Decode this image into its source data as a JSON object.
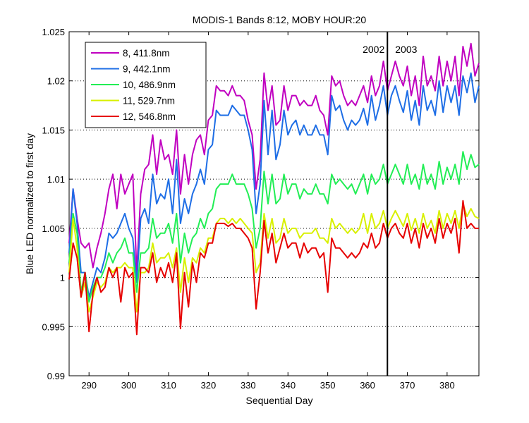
{
  "chart_data": {
    "type": "line",
    "title": "MODIS-1 Bands 8:12, MOBY HOUR:20",
    "xlabel": "Sequential Day",
    "ylabel": "Blue LED normalized to first day",
    "xlim": [
      285,
      388
    ],
    "ylim": [
      0.99,
      1.025
    ],
    "xticks": [
      290,
      300,
      310,
      320,
      330,
      340,
      350,
      360,
      370,
      380
    ],
    "yticks": [
      "0.99",
      "0.995",
      "1",
      "1.005",
      "1.01",
      "1.015",
      "1.02",
      "1.025"
    ],
    "grid": true,
    "legend_position": "top-left",
    "annotations": {
      "divider_x": 365,
      "left_label": "2002",
      "right_label": "2003"
    },
    "x": [
      285,
      286,
      287,
      288,
      289,
      290,
      291,
      292,
      293,
      294,
      295,
      296,
      297,
      298,
      299,
      300,
      301,
      302,
      303,
      304,
      305,
      306,
      307,
      308,
      309,
      310,
      311,
      312,
      313,
      314,
      315,
      316,
      317,
      318,
      319,
      320,
      321,
      322,
      323,
      324,
      325,
      326,
      327,
      328,
      329,
      330,
      331,
      332,
      333,
      334,
      335,
      336,
      337,
      338,
      339,
      340,
      341,
      342,
      343,
      344,
      345,
      346,
      347,
      348,
      349,
      350,
      351,
      352,
      353,
      354,
      355,
      356,
      357,
      358,
      359,
      360,
      361,
      362,
      363,
      364,
      365,
      366,
      367,
      368,
      369,
      370,
      371,
      372,
      373,
      374,
      375,
      376,
      377,
      378,
      379,
      380,
      381,
      382,
      383,
      384,
      385,
      386,
      387,
      388
    ],
    "series": [
      {
        "name": "8, 411.8nm",
        "color": "#c000c0",
        "values": [
          1.0035,
          1.009,
          1.006,
          1.0035,
          1.003,
          1.0035,
          1.001,
          1.003,
          1.0045,
          1.0065,
          1.009,
          1.0105,
          1.007,
          1.0105,
          1.0085,
          1.0095,
          1.0105,
          1.0005,
          1.0085,
          1.011,
          1.0115,
          1.0145,
          1.0105,
          1.014,
          1.012,
          1.0125,
          1.0105,
          1.015,
          1.0085,
          1.0125,
          1.0095,
          1.0125,
          1.014,
          1.0145,
          1.0125,
          1.016,
          1.0165,
          1.0195,
          1.019,
          1.019,
          1.0185,
          1.0195,
          1.0185,
          1.0185,
          1.018,
          1.016,
          1.0145,
          1.009,
          1.012,
          1.0208,
          1.017,
          1.0195,
          1.0155,
          1.016,
          1.0195,
          1.017,
          1.0185,
          1.0185,
          1.0175,
          1.018,
          1.0175,
          1.0175,
          1.0185,
          1.017,
          1.0165,
          1.0145,
          1.0205,
          1.0195,
          1.02,
          1.0185,
          1.0175,
          1.018,
          1.0175,
          1.0185,
          1.0195,
          1.0178,
          1.0205,
          1.0185,
          1.0195,
          1.022,
          1.019,
          1.0205,
          1.022,
          1.0205,
          1.0195,
          1.0215,
          1.0185,
          1.0205,
          1.0175,
          1.0225,
          1.0195,
          1.0205,
          1.019,
          1.0225,
          1.0195,
          1.022,
          1.02,
          1.0225,
          1.0185,
          1.0235,
          1.0215,
          1.0238,
          1.0205,
          1.0218
        ]
      },
      {
        "name": "9, 442.1nm",
        "color": "#1e6ee6",
        "values": [
          1.0025,
          1.009,
          1.0055,
          1.0005,
          1.0005,
          0.998,
          0.9995,
          1.001,
          1.0005,
          1.002,
          1.0045,
          1.004,
          1.0045,
          1.0055,
          1.0065,
          1.005,
          1.004,
          0.9995,
          1.006,
          1.007,
          1.0055,
          1.0105,
          1.0075,
          1.0085,
          1.008,
          1.01,
          1.0065,
          1.012,
          1.0055,
          1.008,
          1.0065,
          1.0085,
          1.0095,
          1.011,
          1.0095,
          1.013,
          1.0135,
          1.017,
          1.0165,
          1.0165,
          1.0165,
          1.0175,
          1.017,
          1.0165,
          1.0165,
          1.015,
          1.013,
          1.0065,
          1.0095,
          1.018,
          1.0125,
          1.017,
          1.012,
          1.0135,
          1.017,
          1.0145,
          1.0155,
          1.016,
          1.0145,
          1.0155,
          1.0145,
          1.0145,
          1.0155,
          1.0145,
          1.0145,
          1.0125,
          1.0185,
          1.017,
          1.0175,
          1.016,
          1.015,
          1.016,
          1.0155,
          1.016,
          1.0172,
          1.0155,
          1.0185,
          1.016,
          1.0175,
          1.0195,
          1.0165,
          1.0185,
          1.0195,
          1.018,
          1.0168,
          1.019,
          1.016,
          1.018,
          1.0155,
          1.0195,
          1.017,
          1.018,
          1.0165,
          1.02,
          1.0168,
          1.0195,
          1.0178,
          1.0195,
          1.0165,
          1.0205,
          1.0188,
          1.0208,
          1.0178,
          1.0195
        ]
      },
      {
        "name": "10, 486.9nm",
        "color": "#22ee55",
        "values": [
          1.0015,
          1.0065,
          1.0045,
          0.9985,
          1.0005,
          0.9975,
          0.999,
          1.0,
          1.0,
          1.001,
          1.0025,
          1.0015,
          1.0025,
          1.003,
          1.004,
          1.0025,
          1.0025,
          0.9985,
          1.0025,
          1.0025,
          1.003,
          1.006,
          1.004,
          1.0045,
          1.0045,
          1.0055,
          1.0035,
          1.0065,
          1.0015,
          1.0045,
          1.0025,
          1.004,
          1.0045,
          1.006,
          1.005,
          1.0065,
          1.007,
          1.009,
          1.0095,
          1.0095,
          1.0095,
          1.0105,
          1.0095,
          1.0095,
          1.0095,
          1.0085,
          1.007,
          1.003,
          1.005,
          1.0108,
          1.0075,
          1.0105,
          1.0075,
          1.008,
          1.0105,
          1.0085,
          1.0095,
          1.0095,
          1.008,
          1.009,
          1.0085,
          1.0085,
          1.0095,
          1.0085,
          1.0085,
          1.0075,
          1.0105,
          1.0095,
          1.01,
          1.0095,
          1.009,
          1.0095,
          1.0085,
          1.0095,
          1.0105,
          1.0085,
          1.0105,
          1.0095,
          1.01,
          1.0115,
          1.0095,
          1.0105,
          1.0115,
          1.0105,
          1.0095,
          1.0115,
          1.0095,
          1.0105,
          1.009,
          1.0115,
          1.0095,
          1.0105,
          1.009,
          1.0118,
          1.0095,
          1.0112,
          1.01,
          1.0115,
          1.0095,
          1.0128,
          1.011,
          1.0125,
          1.0112,
          1.0115
        ]
      },
      {
        "name": "11, 529.7nm",
        "color": "#d8f000",
        "values": [
          1.0005,
          1.006,
          1.003,
          0.998,
          0.9995,
          0.9965,
          0.998,
          0.9995,
          0.999,
          0.9995,
          1.001,
          1.0005,
          1.001,
          1.001,
          1.0015,
          1.001,
          1.001,
          0.9965,
          1.0005,
          1.0005,
          1.001,
          1.0035,
          1.0015,
          1.002,
          1.002,
          1.0025,
          1.001,
          1.003,
          0.9985,
          1.002,
          0.9995,
          1.002,
          1.0015,
          1.003,
          1.0025,
          1.004,
          1.004,
          1.0055,
          1.006,
          1.006,
          1.0055,
          1.006,
          1.0055,
          1.006,
          1.0055,
          1.005,
          1.0045,
          1.0005,
          1.0015,
          1.0065,
          1.004,
          1.006,
          1.0035,
          1.004,
          1.006,
          1.0045,
          1.005,
          1.005,
          1.004,
          1.0045,
          1.0045,
          1.0045,
          1.005,
          1.004,
          1.004,
          1.0035,
          1.006,
          1.005,
          1.0055,
          1.005,
          1.0045,
          1.005,
          1.0045,
          1.005,
          1.0065,
          1.0045,
          1.0065,
          1.005,
          1.0055,
          1.0068,
          1.005,
          1.006,
          1.0068,
          1.006,
          1.0052,
          1.0065,
          1.0048,
          1.006,
          1.0045,
          1.0065,
          1.005,
          1.0058,
          1.0045,
          1.0068,
          1.005,
          1.0065,
          1.0055,
          1.0068,
          1.005,
          1.0075,
          1.0062,
          1.007,
          1.0062,
          1.006
        ]
      },
      {
        "name": "12, 546.8nm",
        "color": "#e60000",
        "values": [
          0.9998,
          1.0035,
          1.002,
          0.998,
          1.0005,
          0.9945,
          0.9985,
          1.0,
          0.9985,
          0.999,
          1.001,
          1.0,
          1.001,
          0.9975,
          1.001,
          1.0,
          1.0005,
          0.9942,
          1.001,
          1.001,
          1.0005,
          1.0025,
          0.9995,
          1.001,
          1.0,
          1.0015,
          0.9995,
          1.0025,
          0.9948,
          1.0005,
          0.997,
          1.0015,
          0.9995,
          1.0025,
          1.002,
          1.0035,
          1.0035,
          1.0055,
          1.0055,
          1.0055,
          1.0052,
          1.0055,
          1.005,
          1.005,
          1.0045,
          1.004,
          1.003,
          0.9968,
          1.0005,
          1.0058,
          1.0025,
          1.0045,
          1.0015,
          1.003,
          1.0045,
          1.003,
          1.0035,
          1.0035,
          1.002,
          1.0035,
          1.0025,
          1.003,
          1.003,
          1.002,
          1.0025,
          0.9985,
          1.004,
          1.003,
          1.003,
          1.0025,
          1.002,
          1.0025,
          1.002,
          1.0025,
          1.0035,
          1.003,
          1.0045,
          1.003,
          1.0035,
          1.0055,
          1.004,
          1.005,
          1.0055,
          1.0045,
          1.004,
          1.0055,
          1.0035,
          1.005,
          1.003,
          1.0055,
          1.004,
          1.005,
          1.0035,
          1.006,
          1.004,
          1.0055,
          1.0045,
          1.006,
          1.0025,
          1.0078,
          1.005,
          1.0055,
          1.005,
          1.005
        ]
      }
    ]
  }
}
